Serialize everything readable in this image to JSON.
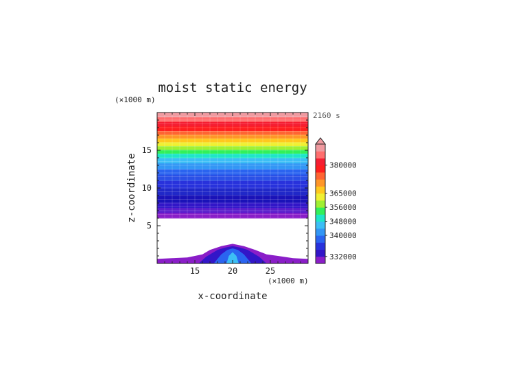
{
  "chart_data": {
    "type": "contour",
    "title": "moist static energy",
    "time_label": "2160 s",
    "xlabel": "x-coordinate",
    "ylabel": "z-coordinate",
    "x_unit": "(×1000 m)",
    "y_unit": "(×1000 m)",
    "xlim": [
      10,
      30
    ],
    "ylim": [
      0,
      20
    ],
    "xticks": [
      15,
      20,
      25
    ],
    "yticks": [
      5,
      10,
      15
    ],
    "colorbar": {
      "labels": [
        "332000",
        "340000",
        "348000",
        "356000",
        "365000",
        "380000"
      ],
      "colors": [
        "#8a1ec8",
        "#3216c8",
        "#2832dc",
        "#2a64f0",
        "#3296f5",
        "#3cbef5",
        "#1ee6c8",
        "#32f05a",
        "#a0f032",
        "#f0f032",
        "#ffc81e",
        "#ff9628",
        "#ff6432",
        "#ff1e1e",
        "#f51e32",
        "#ff6e6e",
        "#f09aa0"
      ],
      "extend": "max",
      "overflow_color": "#f09aa0"
    },
    "layers": [
      {
        "z_from": 0.0,
        "z_to": 6.0,
        "color": "#ffffff"
      },
      {
        "z_from": 6.0,
        "z_to": 6.7,
        "color": "#8a1ec8"
      },
      {
        "z_from": 6.7,
        "z_to": 7.4,
        "color": "#5a1ecc"
      },
      {
        "z_from": 7.4,
        "z_to": 8.1,
        "color": "#3216c8"
      },
      {
        "z_from": 8.1,
        "z_to": 9.1,
        "color": "#1a12b8"
      },
      {
        "z_from": 9.1,
        "z_to": 10.0,
        "color": "#2028c8"
      },
      {
        "z_from": 10.0,
        "z_to": 11.0,
        "color": "#2832dc"
      },
      {
        "z_from": 11.0,
        "z_to": 11.8,
        "color": "#2a50e6"
      },
      {
        "z_from": 11.8,
        "z_to": 12.5,
        "color": "#2a64f0"
      },
      {
        "z_from": 12.5,
        "z_to": 13.3,
        "color": "#3296f5"
      },
      {
        "z_from": 13.3,
        "z_to": 14.0,
        "color": "#3cbef5"
      },
      {
        "z_from": 14.0,
        "z_to": 14.6,
        "color": "#1ee6c8"
      },
      {
        "z_from": 14.6,
        "z_to": 15.1,
        "color": "#32f05a"
      },
      {
        "z_from": 15.1,
        "z_to": 15.6,
        "color": "#a0f032"
      },
      {
        "z_from": 15.6,
        "z_to": 16.1,
        "color": "#f0f032"
      },
      {
        "z_from": 16.1,
        "z_to": 16.6,
        "color": "#ffc81e"
      },
      {
        "z_from": 16.6,
        "z_to": 17.1,
        "color": "#ff9628"
      },
      {
        "z_from": 17.1,
        "z_to": 17.6,
        "color": "#ff6432"
      },
      {
        "z_from": 17.6,
        "z_to": 18.2,
        "color": "#ff1e1e"
      },
      {
        "z_from": 18.2,
        "z_to": 18.8,
        "color": "#f51e32"
      },
      {
        "z_from": 18.8,
        "z_to": 19.4,
        "color": "#ff6e6e"
      },
      {
        "z_from": 19.4,
        "z_to": 20.0,
        "color": "#f09aa0"
      }
    ],
    "mountain": [
      {
        "name": "outer",
        "color": "#8a1ec8",
        "points": [
          [
            10,
            0
          ],
          [
            10,
            0.6
          ],
          [
            12,
            0.7
          ],
          [
            14,
            0.8
          ],
          [
            16,
            1.2
          ],
          [
            17,
            1.8
          ],
          [
            18.5,
            2.3
          ],
          [
            20,
            2.6
          ],
          [
            21.5,
            2.3
          ],
          [
            23,
            1.8
          ],
          [
            24.5,
            1.2
          ],
          [
            26,
            1.0
          ],
          [
            28,
            0.7
          ],
          [
            30,
            0.6
          ],
          [
            30,
            0
          ]
        ]
      },
      {
        "name": "mid",
        "color": "#3216c8",
        "points": [
          [
            15.5,
            0
          ],
          [
            16.5,
            0.9
          ],
          [
            18,
            1.8
          ],
          [
            19,
            2.1
          ],
          [
            20,
            2.3
          ],
          [
            21,
            2.1
          ],
          [
            22,
            1.8
          ],
          [
            23.5,
            0.9
          ],
          [
            24.5,
            0
          ]
        ]
      },
      {
        "name": "inner",
        "color": "#2a64f0",
        "points": [
          [
            17.5,
            0
          ],
          [
            18.5,
            1.2
          ],
          [
            19.3,
            1.8
          ],
          [
            20,
            2.0
          ],
          [
            20.7,
            1.8
          ],
          [
            21.5,
            1.2
          ],
          [
            22.5,
            0
          ]
        ]
      },
      {
        "name": "core",
        "color": "#3cbef5",
        "points": [
          [
            19.2,
            0
          ],
          [
            19.5,
            1.0
          ],
          [
            20,
            1.5
          ],
          [
            20.5,
            1.0
          ],
          [
            20.8,
            0
          ]
        ]
      }
    ]
  }
}
